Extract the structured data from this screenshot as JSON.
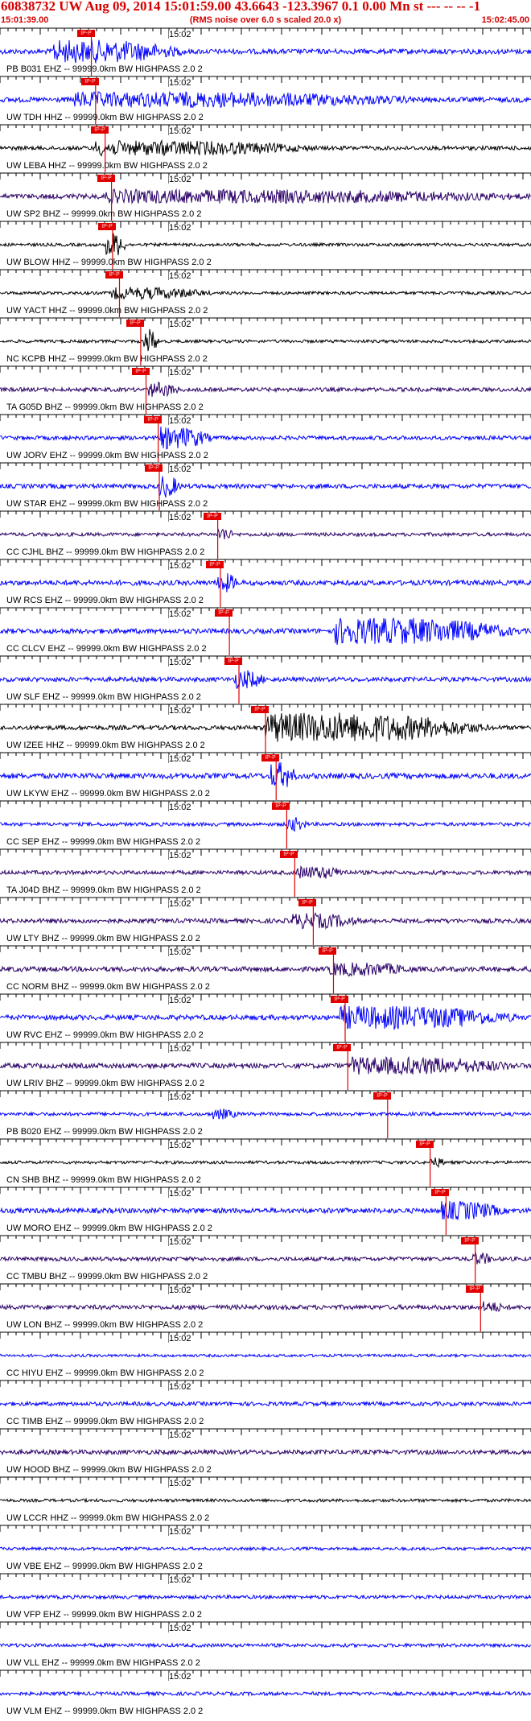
{
  "header": {
    "title": "60838732 UW Aug 09, 2014 15:01:59.00   43.6643 -123.3967  0.1 0.00 Mn st --- -- --   -1",
    "start_time": "15:01:39.00",
    "subtitle": "(RMS noise over 6.0 s scaled 20.0 x)",
    "end_time": "15:02:45.00"
  },
  "colors": {
    "header_text": "#d40000",
    "pick": "#e00000",
    "trace_blue": "#0000ff",
    "trace_navy": "#2a0066",
    "trace_black": "#000000",
    "axis": "#000000"
  },
  "minute_label": "15:02",
  "pick_box_text": "IP-P",
  "traces": [
    {
      "label": "PB B031 EHZ -- 99999.0km BW  HIGHPASS  2.0  2",
      "color": "#0000ff",
      "pick": 0.172,
      "amp": 0.35,
      "burst": [
        0.1,
        0.35,
        5.0
      ]
    },
    {
      "label": "UW TDH HHZ -- 99999.0km BW  HIGHPASS  2.0  2",
      "color": "#0000ff",
      "pick": 0.18,
      "amp": 0.35,
      "burst": [
        0.14,
        0.8,
        3.0
      ]
    },
    {
      "label": "UW LEBA HHZ -- 99999.0km BW  HIGHPASS  2.0  2",
      "color": "#000000",
      "pick": 0.198,
      "amp": 0.25,
      "burst": [
        0.18,
        0.6,
        3.0
      ]
    },
    {
      "label": "UW SP2 BHZ -- 99999.0km BW  HIGHPASS  2.0  2",
      "color": "#2a0066",
      "pick": 0.21,
      "amp": 0.35,
      "burst": [
        0.2,
        1.0,
        2.5
      ]
    },
    {
      "label": "UW BLOW HHZ -- 99999.0km BW  HIGHPASS  2.0  2",
      "color": "#000000",
      "pick": 0.212,
      "amp": 0.15,
      "burst": [
        0.2,
        0.24,
        6.0
      ]
    },
    {
      "label": "UW YACT HHZ -- 99999.0km BW  HIGHPASS  2.0  2",
      "color": "#000000",
      "pick": 0.225,
      "amp": 0.15,
      "burst": [
        0.21,
        0.4,
        2.5
      ]
    },
    {
      "label": "NC KCPB HHZ -- 99999.0km BW  HIGHPASS  2.0  2",
      "color": "#000000",
      "pick": 0.265,
      "amp": 0.15,
      "burst": [
        0.27,
        0.3,
        6.0
      ]
    },
    {
      "label": "TA G05D BHZ -- 99999.0km BW  HIGHPASS  2.0  2",
      "color": "#2a0066",
      "pick": 0.275,
      "amp": 0.25,
      "burst": [
        0.28,
        0.34,
        3.0
      ]
    },
    {
      "label": "UW JORV EHZ -- 99999.0km BW  HIGHPASS  2.0  2",
      "color": "#0000ff",
      "pick": 0.298,
      "amp": 0.25,
      "burst": [
        0.3,
        0.4,
        5.0
      ]
    },
    {
      "label": "UW STAR EHZ -- 99999.0km BW  HIGHPASS  2.0  2",
      "color": "#0000ff",
      "pick": 0.3,
      "amp": 0.3,
      "burst": [
        0.3,
        0.34,
        5.0
      ]
    },
    {
      "label": "CC CJHL BHZ -- 99999.0km BW  HIGHPASS  2.0  2",
      "color": "#2a0066",
      "pick": 0.41,
      "amp": 0.2,
      "burst": [
        0.41,
        0.44,
        3.0
      ]
    },
    {
      "label": "UW RCS EHZ -- 99999.0km BW  HIGHPASS  2.0  2",
      "color": "#0000ff",
      "pick": 0.415,
      "amp": 0.35,
      "burst": [
        0.41,
        0.45,
        4.0
      ]
    },
    {
      "label": "CC CLCV EHZ -- 99999.0km BW  HIGHPASS  2.0  2",
      "color": "#0000ff",
      "pick": 0.432,
      "amp": 0.35,
      "burst": [
        0.63,
        0.98,
        6.0
      ]
    },
    {
      "label": "UW SLF EHZ -- 99999.0km BW  HIGHPASS  2.0  2",
      "color": "#0000ff",
      "pick": 0.45,
      "amp": 0.3,
      "burst": [
        0.44,
        0.5,
        4.0
      ]
    },
    {
      "label": "UW IZEE HHZ -- 99999.0km BW  HIGHPASS  2.0  2",
      "color": "#000000",
      "pick": 0.5,
      "amp": 0.3,
      "burst": [
        0.5,
        0.92,
        7.0
      ]
    },
    {
      "label": "UW LKYW EHZ -- 99999.0km BW  HIGHPASS  2.0  2",
      "color": "#0000ff",
      "pick": 0.52,
      "amp": 0.4,
      "burst": [
        0.51,
        0.56,
        6.0
      ]
    },
    {
      "label": "CC SEP EHZ -- 99999.0km BW  HIGHPASS  2.0  2",
      "color": "#0000ff",
      "pick": 0.54,
      "amp": 0.2,
      "burst": [
        0.54,
        0.58,
        3.0
      ]
    },
    {
      "label": "TA J04D BHZ -- 99999.0km BW  HIGHPASS  2.0  2",
      "color": "#2a0066",
      "pick": 0.555,
      "amp": 0.25,
      "burst": [
        0.56,
        0.66,
        2.5
      ]
    },
    {
      "label": "UW LTY BHZ -- 99999.0km BW  HIGHPASS  2.0  2",
      "color": "#2a0066",
      "pick": 0.59,
      "amp": 0.3,
      "burst": [
        0.55,
        0.68,
        3.0
      ]
    },
    {
      "label": "CC NORM BHZ -- 99999.0km BW  HIGHPASS  2.0  2",
      "color": "#2a0066",
      "pick": 0.628,
      "amp": 0.35,
      "burst": [
        0.62,
        0.78,
        2.5
      ]
    },
    {
      "label": "UW RVC EHZ -- 99999.0km BW  HIGHPASS  2.0  2",
      "color": "#0000ff",
      "pick": 0.65,
      "amp": 0.35,
      "burst": [
        0.64,
        0.98,
        5.0
      ]
    },
    {
      "label": "UW LRIV BHZ -- 99999.0km BW  HIGHPASS  2.0  2",
      "color": "#2a0066",
      "pick": 0.655,
      "amp": 0.35,
      "burst": [
        0.66,
        0.98,
        3.5
      ]
    },
    {
      "label": "PB B020 EHZ -- 99999.0km BW  HIGHPASS  2.0  2",
      "color": "#0000ff",
      "pick": 0.73,
      "amp": 0.2,
      "burst": [
        0.4,
        0.45,
        2.0
      ]
    },
    {
      "label": "CN SHB BHZ -- 99999.0km BW  HIGHPASS  2.0  2",
      "color": "#000000",
      "pick": 0.81,
      "amp": 0.15,
      "burst": [
        0.81,
        0.84,
        2.0
      ]
    },
    {
      "label": "UW MORO EHZ -- 99999.0km BW  HIGHPASS  2.0  2",
      "color": "#0000ff",
      "pick": 0.84,
      "amp": 0.35,
      "burst": [
        0.83,
        0.95,
        4.0
      ]
    },
    {
      "label": "CC TMBU BHZ -- 99999.0km BW  HIGHPASS  2.0  2",
      "color": "#2a0066",
      "pick": 0.895,
      "amp": 0.25,
      "burst": [
        0.89,
        0.93,
        2.5
      ]
    },
    {
      "label": "UW LON BHZ -- 99999.0km BW  HIGHPASS  2.0  2",
      "color": "#2a0066",
      "pick": 0.905,
      "amp": 0.3,
      "burst": [
        0.91,
        0.95,
        2.0
      ]
    },
    {
      "label": "CC HIYU EHZ -- 99999.0km BW  HIGHPASS  2.0  2",
      "color": "#0000ff",
      "pick": null,
      "amp": 0.12,
      "burst": null
    },
    {
      "label": "CC TIMB EHZ -- 99999.0km BW  HIGHPASS  2.0  2",
      "color": "#0000ff",
      "pick": null,
      "amp": 0.25,
      "burst": null
    },
    {
      "label": "UW HOOD BHZ -- 99999.0km BW  HIGHPASS  2.0  2",
      "color": "#2a0066",
      "pick": null,
      "amp": 0.3,
      "burst": null
    },
    {
      "label": "UW LCCR HHZ -- 99999.0km BW  HIGHPASS  2.0  2",
      "color": "#000000",
      "pick": null,
      "amp": 0.15,
      "burst": null
    },
    {
      "label": "UW VBE EHZ -- 99999.0km BW  HIGHPASS  2.0  2",
      "color": "#0000ff",
      "pick": null,
      "amp": 0.15,
      "burst": null
    },
    {
      "label": "UW VFP EHZ -- 99999.0km BW  HIGHPASS  2.0  2",
      "color": "#0000ff",
      "pick": null,
      "amp": 0.2,
      "burst": null
    },
    {
      "label": "UW VLL EHZ -- 99999.0km BW  HIGHPASS  2.0  2",
      "color": "#0000ff",
      "pick": null,
      "amp": 0.2,
      "burst": null
    },
    {
      "label": "UW VLM EHZ -- 99999.0km BW  HIGHPASS  2.0  2",
      "color": "#0000ff",
      "pick": null,
      "amp": 0.2,
      "burst": null
    }
  ]
}
